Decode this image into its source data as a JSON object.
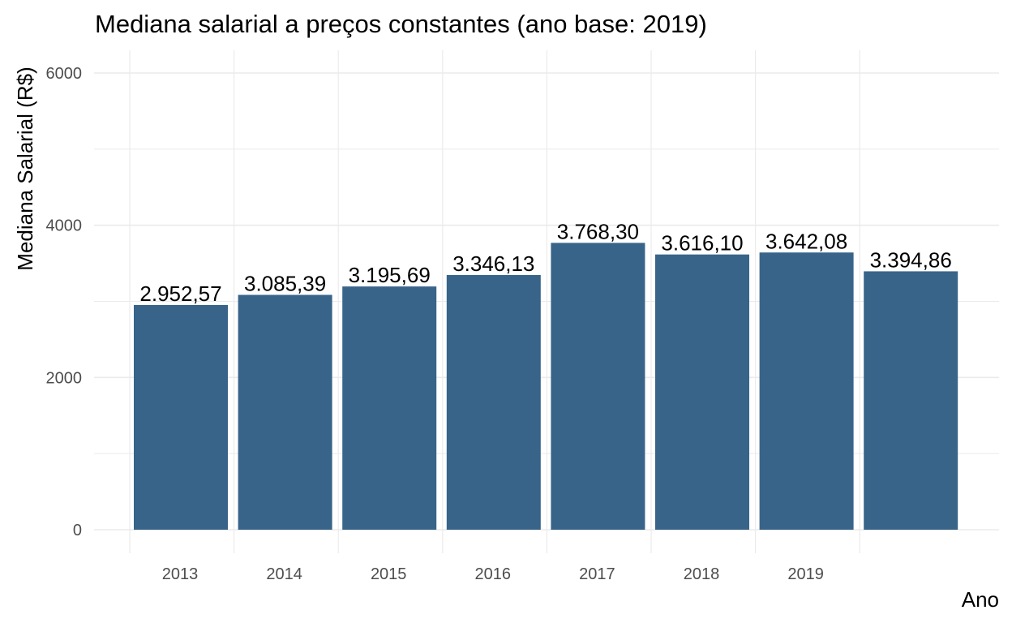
{
  "chart_data": {
    "type": "bar",
    "title": "Mediana salarial a preços constantes (ano base: 2019)",
    "xlabel": "Ano",
    "ylabel": "Mediana Salarial (R$)",
    "x_tick_labels": [
      "2013",
      "2014",
      "2015",
      "2016",
      "2017",
      "2018",
      "2019",
      ""
    ],
    "values": [
      2952.57,
      3085.39,
      3195.69,
      3346.13,
      3768.3,
      3616.1,
      3642.08,
      3394.86
    ],
    "data_labels": [
      "2.952,57",
      "3.085,39",
      "3.195,69",
      "3.346,13",
      "3.768,30",
      "3.616,10",
      "3.642,08",
      "3.394,86"
    ],
    "y_ticks": [
      0,
      2000,
      4000,
      6000
    ],
    "ylim": [
      -300,
      6300
    ],
    "grid": true,
    "legend": "none",
    "bar_color": "#386489",
    "grid_color": "#ebebeb"
  }
}
